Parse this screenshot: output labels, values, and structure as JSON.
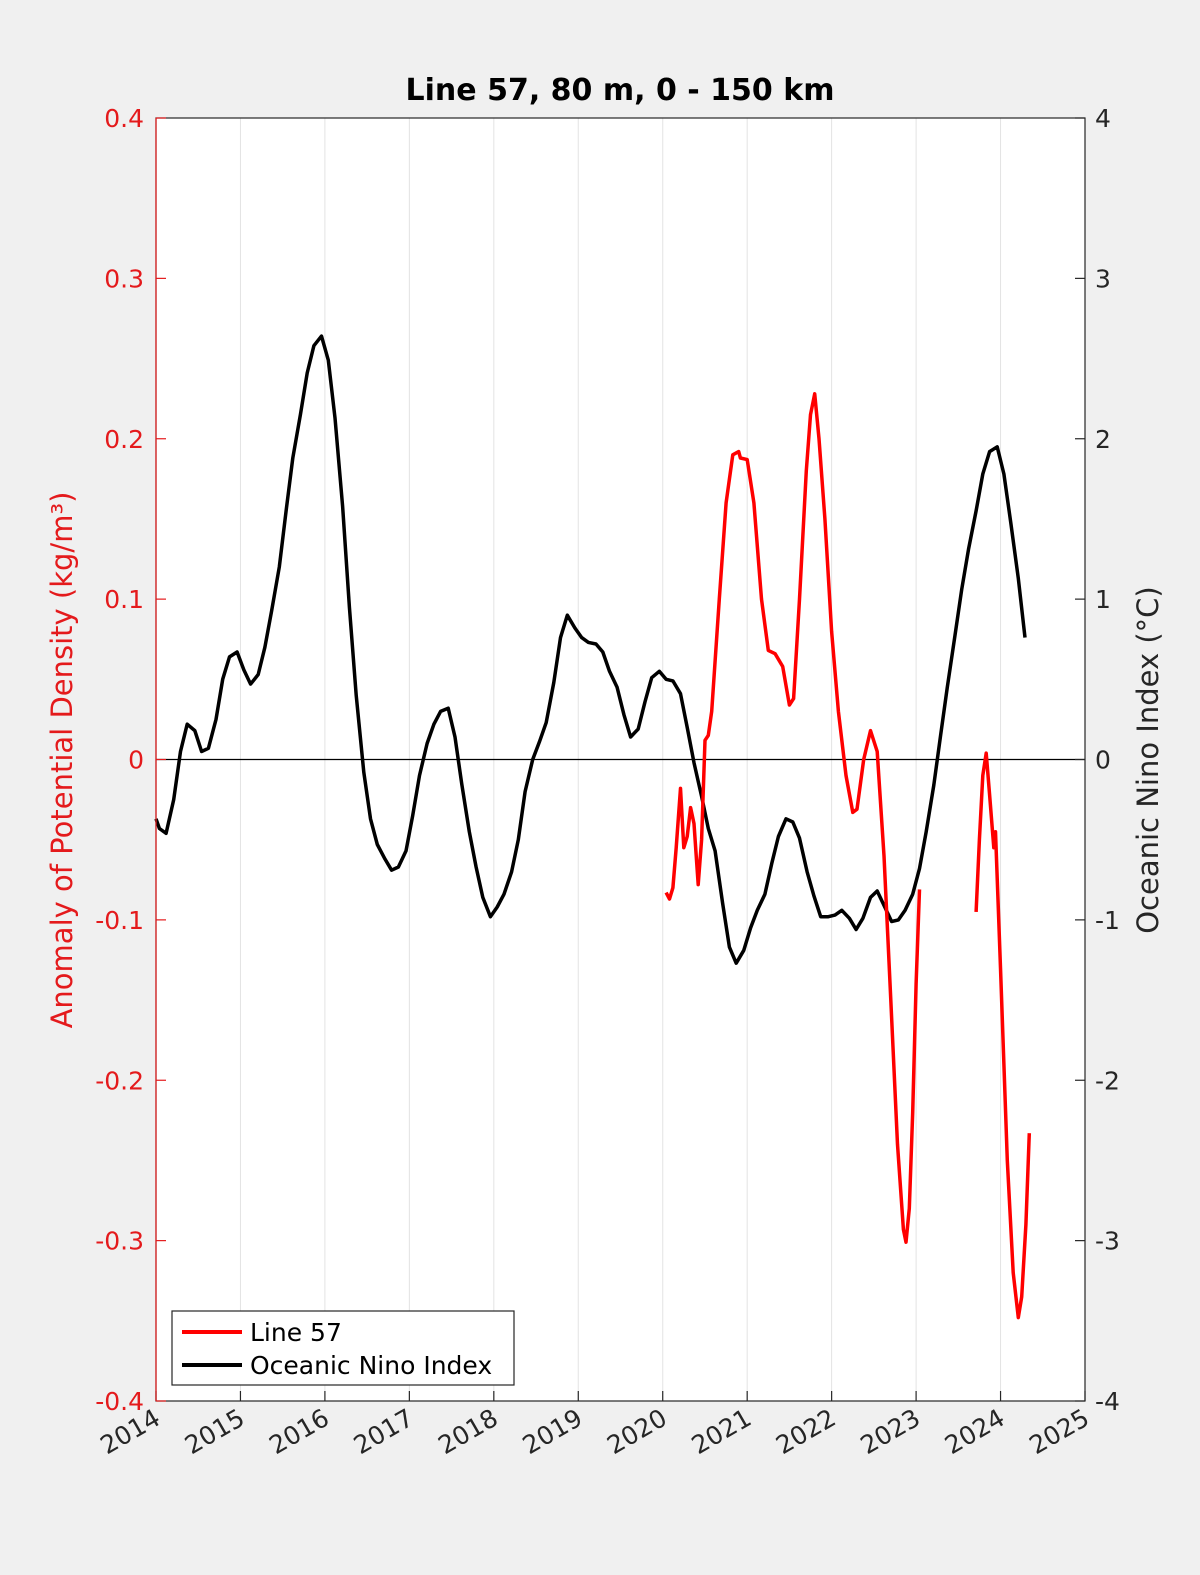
{
  "chart_data": {
    "type": "line",
    "title": "Line 57, 80 m, 0 - 150 km",
    "ylabel_left": "Anomaly of Potential Density (kg/m³)",
    "ylabel_right": "Oceanic Nino Index (°C)",
    "xlim": [
      2014,
      2025
    ],
    "ylim_left": [
      -0.4,
      0.4
    ],
    "ylim_right": [
      -4,
      4
    ],
    "x_ticks": [
      "2014",
      "2015",
      "2016",
      "2017",
      "2018",
      "2019",
      "2020",
      "2021",
      "2022",
      "2023",
      "2024",
      "2025"
    ],
    "y_left_ticks": [
      "-0.4",
      "-0.3",
      "-0.2",
      "-0.1",
      "0",
      "0.1",
      "0.2",
      "0.3",
      "0.4"
    ],
    "y_right_ticks": [
      "-4",
      "-3",
      "-2",
      "-1",
      "0",
      "1",
      "2",
      "3",
      "4"
    ],
    "grid": "vertical",
    "zero_line": true,
    "legend_position": "bottom-left",
    "colors": {
      "left_axis": "#e41a1c",
      "line57": "#ff0000",
      "oni": "#000000",
      "background": "#f0f0f0",
      "plot_bg": "#ffffff"
    },
    "series": [
      {
        "name": "Line 57",
        "axis": "left",
        "segments": [
          [
            [
              2020.04,
              -0.083
            ],
            [
              2020.08,
              -0.087
            ],
            [
              2020.12,
              -0.08
            ],
            [
              2020.16,
              -0.055
            ],
            [
              2020.21,
              -0.018
            ],
            [
              2020.25,
              -0.055
            ],
            [
              2020.29,
              -0.048
            ],
            [
              2020.33,
              -0.03
            ],
            [
              2020.37,
              -0.04
            ],
            [
              2020.42,
              -0.078
            ],
            [
              2020.46,
              -0.05
            ],
            [
              2020.5,
              0.012
            ],
            [
              2020.54,
              0.015
            ],
            [
              2020.58,
              0.03
            ],
            [
              2020.67,
              0.1
            ],
            [
              2020.75,
              0.16
            ],
            [
              2020.83,
              0.19
            ],
            [
              2020.9,
              0.192
            ],
            [
              2020.92,
              0.188
            ],
            [
              2021.0,
              0.187
            ],
            [
              2021.08,
              0.16
            ],
            [
              2021.17,
              0.1
            ],
            [
              2021.25,
              0.068
            ],
            [
              2021.33,
              0.066
            ],
            [
              2021.42,
              0.058
            ],
            [
              2021.5,
              0.034
            ],
            [
              2021.55,
              0.038
            ],
            [
              2021.62,
              0.1
            ],
            [
              2021.7,
              0.18
            ],
            [
              2021.75,
              0.215
            ],
            [
              2021.8,
              0.228
            ],
            [
              2021.85,
              0.2
            ],
            [
              2021.92,
              0.15
            ],
            [
              2022.0,
              0.08
            ],
            [
              2022.08,
              0.03
            ],
            [
              2022.17,
              -0.01
            ],
            [
              2022.25,
              -0.033
            ],
            [
              2022.3,
              -0.031
            ],
            [
              2022.38,
              0.0
            ],
            [
              2022.46,
              0.018
            ],
            [
              2022.54,
              0.005
            ],
            [
              2022.62,
              -0.06
            ],
            [
              2022.7,
              -0.15
            ],
            [
              2022.78,
              -0.24
            ],
            [
              2022.85,
              -0.293
            ],
            [
              2022.88,
              -0.301
            ],
            [
              2022.92,
              -0.28
            ],
            [
              2022.96,
              -0.22
            ],
            [
              2023.0,
              -0.14
            ],
            [
              2023.04,
              -0.081
            ]
          ],
          [
            [
              2023.71,
              -0.095
            ],
            [
              2023.75,
              -0.05
            ],
            [
              2023.79,
              -0.01
            ],
            [
              2023.83,
              0.004
            ],
            [
              2023.87,
              -0.022
            ],
            [
              2023.92,
              -0.055
            ],
            [
              2023.94,
              -0.045
            ],
            [
              2024.0,
              -0.13
            ],
            [
              2024.08,
              -0.25
            ],
            [
              2024.15,
              -0.32
            ],
            [
              2024.21,
              -0.348
            ],
            [
              2024.25,
              -0.335
            ],
            [
              2024.3,
              -0.29
            ],
            [
              2024.34,
              -0.233
            ]
          ]
        ]
      },
      {
        "name": "Oceanic Nino Index",
        "axis": "right",
        "points": [
          [
            2014.0,
            -0.37
          ],
          [
            2014.04,
            -0.43
          ],
          [
            2014.12,
            -0.46
          ],
          [
            2014.21,
            -0.25
          ],
          [
            2014.29,
            0.05
          ],
          [
            2014.37,
            0.22
          ],
          [
            2014.46,
            0.18
          ],
          [
            2014.54,
            0.05
          ],
          [
            2014.62,
            0.07
          ],
          [
            2014.71,
            0.25
          ],
          [
            2014.79,
            0.5
          ],
          [
            2014.87,
            0.64
          ],
          [
            2014.96,
            0.67
          ],
          [
            2015.04,
            0.56
          ],
          [
            2015.12,
            0.47
          ],
          [
            2015.21,
            0.53
          ],
          [
            2015.29,
            0.7
          ],
          [
            2015.37,
            0.93
          ],
          [
            2015.46,
            1.2
          ],
          [
            2015.54,
            1.55
          ],
          [
            2015.62,
            1.88
          ],
          [
            2015.71,
            2.15
          ],
          [
            2015.79,
            2.41
          ],
          [
            2015.87,
            2.58
          ],
          [
            2015.96,
            2.64
          ],
          [
            2016.04,
            2.49
          ],
          [
            2016.12,
            2.13
          ],
          [
            2016.21,
            1.58
          ],
          [
            2016.29,
            0.95
          ],
          [
            2016.37,
            0.4
          ],
          [
            2016.46,
            -0.08
          ],
          [
            2016.54,
            -0.37
          ],
          [
            2016.62,
            -0.53
          ],
          [
            2016.71,
            -0.62
          ],
          [
            2016.79,
            -0.69
          ],
          [
            2016.87,
            -0.67
          ],
          [
            2016.96,
            -0.57
          ],
          [
            2017.04,
            -0.35
          ],
          [
            2017.12,
            -0.1
          ],
          [
            2017.21,
            0.1
          ],
          [
            2017.29,
            0.22
          ],
          [
            2017.37,
            0.3
          ],
          [
            2017.46,
            0.32
          ],
          [
            2017.54,
            0.14
          ],
          [
            2017.62,
            -0.15
          ],
          [
            2017.71,
            -0.45
          ],
          [
            2017.79,
            -0.67
          ],
          [
            2017.87,
            -0.86
          ],
          [
            2017.96,
            -0.98
          ],
          [
            2018.04,
            -0.92
          ],
          [
            2018.12,
            -0.84
          ],
          [
            2018.21,
            -0.7
          ],
          [
            2018.29,
            -0.5
          ],
          [
            2018.37,
            -0.2
          ],
          [
            2018.46,
            0.0
          ],
          [
            2018.54,
            0.11
          ],
          [
            2018.62,
            0.23
          ],
          [
            2018.71,
            0.48
          ],
          [
            2018.79,
            0.76
          ],
          [
            2018.87,
            0.9
          ],
          [
            2018.96,
            0.82
          ],
          [
            2019.04,
            0.76
          ],
          [
            2019.12,
            0.73
          ],
          [
            2019.21,
            0.72
          ],
          [
            2019.29,
            0.67
          ],
          [
            2019.37,
            0.55
          ],
          [
            2019.46,
            0.45
          ],
          [
            2019.54,
            0.28
          ],
          [
            2019.62,
            0.14
          ],
          [
            2019.71,
            0.19
          ],
          [
            2019.79,
            0.36
          ],
          [
            2019.87,
            0.51
          ],
          [
            2019.96,
            0.55
          ],
          [
            2020.04,
            0.5
          ],
          [
            2020.12,
            0.49
          ],
          [
            2020.21,
            0.41
          ],
          [
            2020.29,
            0.2
          ],
          [
            2020.37,
            -0.02
          ],
          [
            2020.46,
            -0.23
          ],
          [
            2020.54,
            -0.43
          ],
          [
            2020.62,
            -0.57
          ],
          [
            2020.71,
            -0.9
          ],
          [
            2020.79,
            -1.17
          ],
          [
            2020.87,
            -1.27
          ],
          [
            2020.96,
            -1.19
          ],
          [
            2021.04,
            -1.05
          ],
          [
            2021.12,
            -0.94
          ],
          [
            2021.21,
            -0.84
          ],
          [
            2021.29,
            -0.65
          ],
          [
            2021.37,
            -0.48
          ],
          [
            2021.46,
            -0.37
          ],
          [
            2021.54,
            -0.39
          ],
          [
            2021.62,
            -0.49
          ],
          [
            2021.71,
            -0.7
          ],
          [
            2021.79,
            -0.85
          ],
          [
            2021.87,
            -0.98
          ],
          [
            2021.96,
            -0.98
          ],
          [
            2022.04,
            -0.97
          ],
          [
            2022.12,
            -0.94
          ],
          [
            2022.21,
            -0.99
          ],
          [
            2022.29,
            -1.06
          ],
          [
            2022.37,
            -0.99
          ],
          [
            2022.46,
            -0.86
          ],
          [
            2022.54,
            -0.82
          ],
          [
            2022.62,
            -0.91
          ],
          [
            2022.71,
            -1.01
          ],
          [
            2022.79,
            -1.0
          ],
          [
            2022.87,
            -0.94
          ],
          [
            2022.96,
            -0.84
          ],
          [
            2023.04,
            -0.68
          ],
          [
            2023.12,
            -0.45
          ],
          [
            2023.21,
            -0.16
          ],
          [
            2023.29,
            0.15
          ],
          [
            2023.37,
            0.45
          ],
          [
            2023.46,
            0.77
          ],
          [
            2023.54,
            1.06
          ],
          [
            2023.62,
            1.31
          ],
          [
            2023.71,
            1.55
          ],
          [
            2023.79,
            1.78
          ],
          [
            2023.87,
            1.92
          ],
          [
            2023.96,
            1.95
          ],
          [
            2024.04,
            1.78
          ],
          [
            2024.12,
            1.48
          ],
          [
            2024.21,
            1.13
          ],
          [
            2024.29,
            0.76
          ]
        ]
      }
    ]
  }
}
